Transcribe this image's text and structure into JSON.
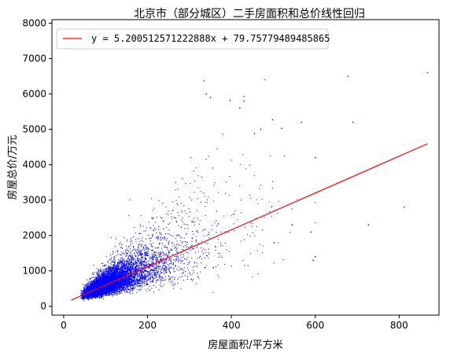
{
  "chart_data": {
    "type": "scatter",
    "title": "北京市（部分城区）二手房面积和总价线性回归",
    "xlabel": "房屋面积/平方米",
    "ylabel": "房屋总价/万元",
    "xlim": [
      -28,
      895
    ],
    "ylim": [
      -250,
      8100
    ],
    "xticks": [
      0,
      200,
      400,
      600,
      800
    ],
    "yticks": [
      0,
      1000,
      2000,
      3000,
      4000,
      5000,
      6000,
      7000,
      8000
    ],
    "grid": false,
    "legend_position": "top-left",
    "colors": {
      "scatter": "#0000ff",
      "line": "#ff0000"
    },
    "regression": {
      "label": "y = 5.200512571222888x + 79.75779489485865",
      "slope": 5.200512571222888,
      "intercept": 79.75779489485865,
      "x_range": [
        18,
        868
      ]
    },
    "scatter_cloud": {
      "count": 9000,
      "x_range": [
        18,
        600
      ],
      "y_range": [
        120,
        6400
      ]
    },
    "notable_points": [
      {
        "x": 868,
        "y": 6600
      },
      {
        "x": 678,
        "y": 6500
      },
      {
        "x": 690,
        "y": 5200
      },
      {
        "x": 812,
        "y": 2800
      },
      {
        "x": 727,
        "y": 2300
      },
      {
        "x": 567,
        "y": 5200
      },
      {
        "x": 335,
        "y": 6370
      },
      {
        "x": 340,
        "y": 6000
      },
      {
        "x": 350,
        "y": 5900
      },
      {
        "x": 397,
        "y": 5820
      },
      {
        "x": 430,
        "y": 5800
      },
      {
        "x": 498,
        "y": 5270
      },
      {
        "x": 520,
        "y": 5030
      },
      {
        "x": 470,
        "y": 5000
      },
      {
        "x": 455,
        "y": 4880
      },
      {
        "x": 420,
        "y": 5600
      },
      {
        "x": 600,
        "y": 4200
      },
      {
        "x": 600,
        "y": 1400
      },
      {
        "x": 595,
        "y": 1300
      },
      {
        "x": 545,
        "y": 2300
      },
      {
        "x": 590,
        "y": 2100
      },
      {
        "x": 502,
        "y": 1800
      }
    ]
  }
}
